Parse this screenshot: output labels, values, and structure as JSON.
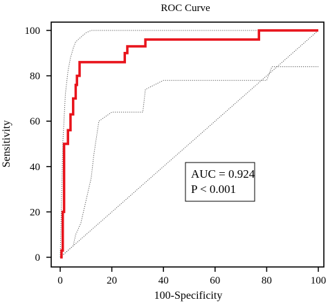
{
  "chart_data": {
    "type": "line",
    "title": "ROC Curve",
    "xlabel": "100-Specificity",
    "ylabel": "Sensitivity",
    "xlim": [
      0,
      100
    ],
    "ylim": [
      0,
      100
    ],
    "x_ticks": [
      0,
      20,
      40,
      60,
      80,
      100
    ],
    "y_ticks": [
      0,
      20,
      40,
      60,
      80,
      100
    ],
    "x_tick_labels": [
      "0",
      "20",
      "40",
      "60",
      "80",
      "100"
    ],
    "y_tick_labels": [
      "0",
      "20",
      "40",
      "60",
      "80",
      "100"
    ],
    "grid": false,
    "series": [
      {
        "color": "#e8131b",
        "style": "solid",
        "x": [
          0,
          0.5,
          0.5,
          1,
          1,
          1.5,
          1.5,
          3,
          3,
          4,
          4,
          5,
          5,
          6,
          6,
          6.5,
          6.5,
          7.5,
          7.5,
          25,
          25,
          26,
          26,
          33,
          33,
          77,
          77,
          100
        ],
        "y": [
          0,
          0,
          3,
          3,
          20,
          20,
          50,
          50,
          56,
          56,
          63,
          63,
          70,
          70,
          76,
          76,
          80,
          80,
          86,
          86,
          90,
          90,
          93,
          93,
          96,
          96,
          100,
          100
        ]
      },
      {
        "color": "#555555",
        "style": "dotted",
        "x": [
          0,
          1,
          2,
          3,
          4,
          5,
          6,
          8,
          10,
          12,
          14,
          20,
          33,
          76,
          80,
          100
        ],
        "y": [
          0,
          50,
          72,
          82,
          88,
          92,
          95,
          97,
          99,
          100,
          100,
          100,
          100,
          100,
          100,
          100
        ]
      },
      {
        "color": "#555555",
        "style": "dotted",
        "x": [
          0,
          5,
          6,
          8,
          10,
          12,
          13,
          15,
          20,
          25,
          32,
          33,
          40,
          80,
          82,
          100
        ],
        "y": [
          0,
          5,
          10,
          15,
          25,
          35,
          45,
          60,
          64,
          64,
          64,
          74,
          78,
          78,
          84,
          84
        ]
      },
      {
        "color": "#555555",
        "style": "dotted",
        "x": [
          0,
          100
        ],
        "y": [
          0,
          100
        ]
      }
    ],
    "annotations": [
      {
        "text": "AUC = 0.924",
        "x": 51,
        "y": 38
      },
      {
        "text": "P < 0.001",
        "x": 51,
        "y": 31
      }
    ]
  }
}
